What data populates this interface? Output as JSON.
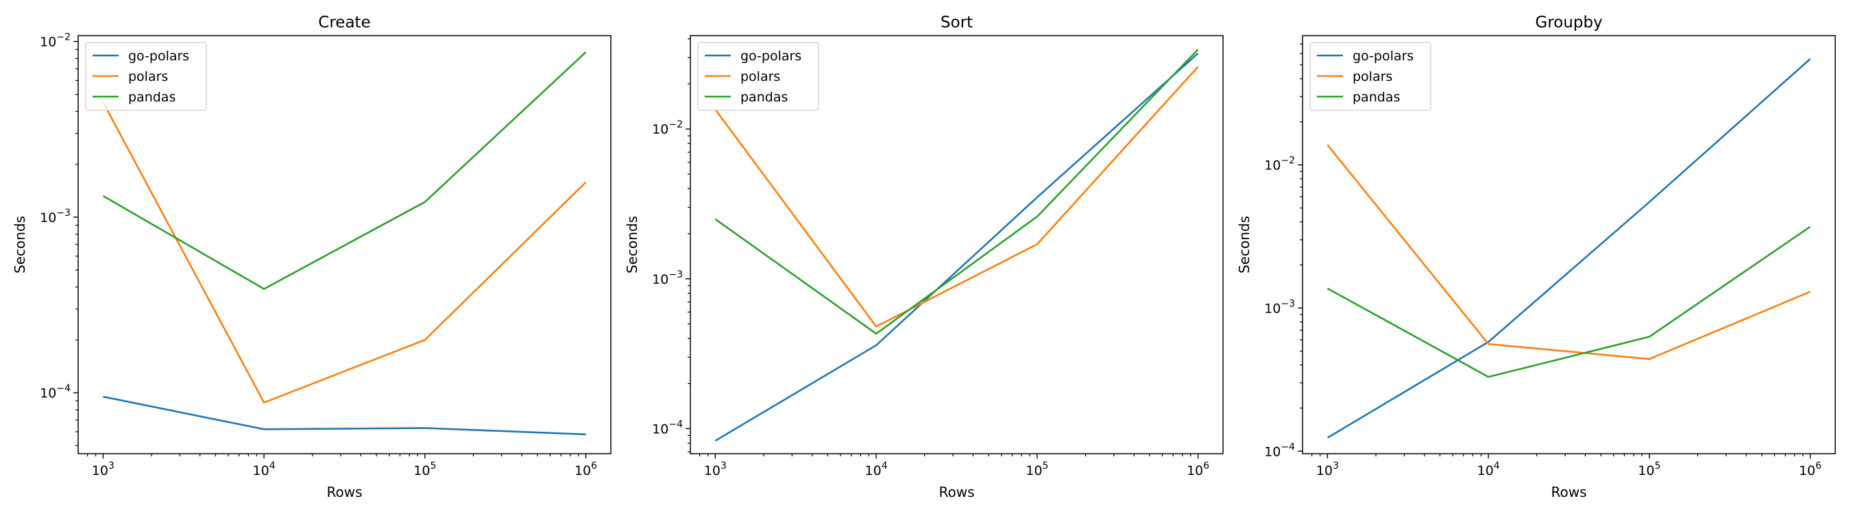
{
  "chart_data": [
    {
      "type": "line",
      "title": "Create",
      "xlabel": "Rows",
      "ylabel": "Seconds",
      "xscale": "log",
      "yscale": "log",
      "grid": false,
      "legend": "top-left",
      "xlim": [
        700,
        1430000
      ],
      "ylim": [
        4.5e-05,
        0.0108
      ],
      "xticks": [
        {
          "v": 1000,
          "b": "10",
          "e": "3"
        },
        {
          "v": 10000,
          "b": "10",
          "e": "4"
        },
        {
          "v": 100000,
          "b": "10",
          "e": "5"
        },
        {
          "v": 1000000,
          "b": "10",
          "e": "6"
        }
      ],
      "yticks": [
        {
          "v": 0.0001,
          "b": "10",
          "e": "−4"
        },
        {
          "v": 0.001,
          "b": "10",
          "e": "−3"
        },
        {
          "v": 0.01,
          "b": "10",
          "e": "−2"
        }
      ],
      "x": [
        1000,
        10000,
        100000,
        1000000
      ],
      "series": [
        {
          "name": "go-polars",
          "color": "#1f77b4",
          "values": [
            9.5e-05,
            6.2e-05,
            6.3e-05,
            5.8e-05
          ]
        },
        {
          "name": "polars",
          "color": "#ff7f0e",
          "values": [
            0.0045,
            8.8e-05,
            0.0002,
            0.00158
          ]
        },
        {
          "name": "pandas",
          "color": "#2ca02c",
          "values": [
            0.00132,
            0.00039,
            0.00122,
            0.0087
          ]
        }
      ]
    },
    {
      "type": "line",
      "title": "Sort",
      "xlabel": "Rows",
      "ylabel": "Seconds",
      "xscale": "log",
      "yscale": "log",
      "grid": false,
      "legend": "top-left",
      "xlim": [
        700,
        1430000
      ],
      "ylim": [
        6.8e-05,
        0.042
      ],
      "xticks": [
        {
          "v": 1000,
          "b": "10",
          "e": "3"
        },
        {
          "v": 10000,
          "b": "10",
          "e": "4"
        },
        {
          "v": 100000,
          "b": "10",
          "e": "5"
        },
        {
          "v": 1000000,
          "b": "10",
          "e": "6"
        }
      ],
      "yticks": [
        {
          "v": 0.0001,
          "b": "10",
          "e": "−4"
        },
        {
          "v": 0.001,
          "b": "10",
          "e": "−3"
        },
        {
          "v": 0.01,
          "b": "10",
          "e": "−2"
        }
      ],
      "x": [
        1000,
        10000,
        100000,
        1000000
      ],
      "series": [
        {
          "name": "go-polars",
          "color": "#1f77b4",
          "values": [
            8.3e-05,
            0.00036,
            0.0035,
            0.032
          ]
        },
        {
          "name": "polars",
          "color": "#ff7f0e",
          "values": [
            0.0135,
            0.00048,
            0.0017,
            0.026
          ]
        },
        {
          "name": "pandas",
          "color": "#2ca02c",
          "values": [
            0.0025,
            0.00043,
            0.0026,
            0.034
          ]
        }
      ]
    },
    {
      "type": "line",
      "title": "Groupby",
      "xlabel": "Rows",
      "ylabel": "Seconds",
      "xscale": "log",
      "yscale": "log",
      "grid": false,
      "legend": "top-left",
      "xlim": [
        700,
        1430000
      ],
      "ylim": [
        9.6e-05,
        0.08
      ],
      "xticks": [
        {
          "v": 1000,
          "b": "10",
          "e": "3"
        },
        {
          "v": 10000,
          "b": "10",
          "e": "4"
        },
        {
          "v": 100000,
          "b": "10",
          "e": "5"
        },
        {
          "v": 1000000,
          "b": "10",
          "e": "6"
        }
      ],
      "yticks": [
        {
          "v": 0.0001,
          "b": "10",
          "e": "−4"
        },
        {
          "v": 0.001,
          "b": "10",
          "e": "−3"
        },
        {
          "v": 0.01,
          "b": "10",
          "e": "−2"
        }
      ],
      "x": [
        1000,
        10000,
        100000,
        1000000
      ],
      "series": [
        {
          "name": "go-polars",
          "color": "#1f77b4",
          "values": [
            0.000124,
            0.00058,
            0.0055,
            0.055
          ]
        },
        {
          "name": "polars",
          "color": "#ff7f0e",
          "values": [
            0.0138,
            0.00056,
            0.00044,
            0.0013
          ]
        },
        {
          "name": "pandas",
          "color": "#2ca02c",
          "values": [
            0.00137,
            0.00033,
            0.00063,
            0.0037
          ]
        }
      ]
    }
  ]
}
